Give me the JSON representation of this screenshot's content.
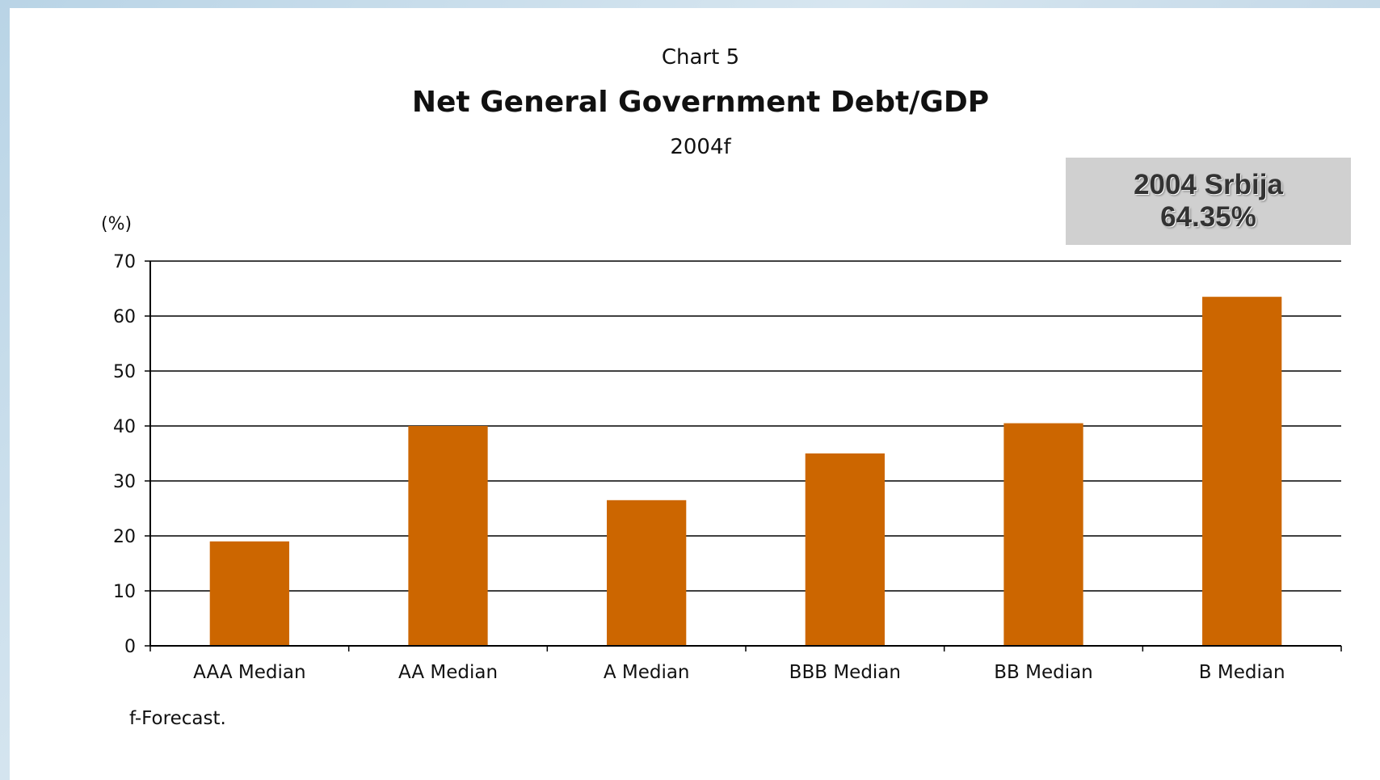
{
  "chart_data": {
    "type": "bar",
    "supertitle": "Chart 5",
    "title": "Net General Government Debt/GDP",
    "subtitle": "2004f",
    "ylabel": "(%)",
    "xlabel": "",
    "ylim": [
      0,
      70
    ],
    "yticks": [
      0,
      10,
      20,
      30,
      40,
      50,
      60,
      70
    ],
    "categories": [
      "AAA Median",
      "AA Median",
      "A Median",
      "BBB Median",
      "BB Median",
      "B Median"
    ],
    "values": [
      19,
      40,
      26.5,
      35,
      40.5,
      63.5
    ],
    "bar_color": "#CC6600",
    "grid": true,
    "note": "f-Forecast."
  },
  "callout": {
    "line1": "2004 Srbija",
    "line2": "64.35%",
    "background": "#D0D0D0"
  }
}
